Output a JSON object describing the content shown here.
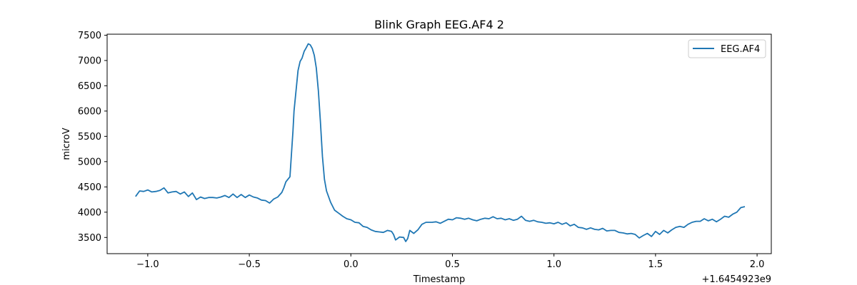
{
  "chart_data": {
    "type": "line",
    "title": "Blink Graph EEG.AF4 2",
    "xlabel": "Timestamp",
    "ylabel": "microV",
    "x_offset_label": "+1.6454923e9",
    "xlim": [
      -1.2,
      2.07
    ],
    "ylim": [
      3180,
      7520
    ],
    "xticks": [
      -1.0,
      -0.5,
      0.0,
      0.5,
      1.0,
      1.5,
      2.0
    ],
    "xtick_labels": [
      "−1.0",
      "−0.5",
      "0.0",
      "0.5",
      "1.0",
      "1.5",
      "2.0"
    ],
    "yticks": [
      3500,
      4000,
      4500,
      5000,
      5500,
      6000,
      6500,
      7000,
      7500
    ],
    "ytick_labels": [
      "3500",
      "4000",
      "4500",
      "5000",
      "5500",
      "6000",
      "6500",
      "7000",
      "7500"
    ],
    "grid": false,
    "legend_position": "top-right",
    "series": [
      {
        "name": "EEG.AF4",
        "color": "#1f77b4",
        "points": [
          [
            -1.06,
            4310
          ],
          [
            -1.04,
            4420
          ],
          [
            -1.02,
            4410
          ],
          [
            -1.0,
            4440
          ],
          [
            -0.98,
            4400
          ],
          [
            -0.96,
            4410
          ],
          [
            -0.94,
            4430
          ],
          [
            -0.92,
            4480
          ],
          [
            -0.9,
            4380
          ],
          [
            -0.88,
            4400
          ],
          [
            -0.86,
            4410
          ],
          [
            -0.84,
            4360
          ],
          [
            -0.82,
            4400
          ],
          [
            -0.8,
            4310
          ],
          [
            -0.78,
            4380
          ],
          [
            -0.76,
            4250
          ],
          [
            -0.74,
            4300
          ],
          [
            -0.72,
            4270
          ],
          [
            -0.7,
            4290
          ],
          [
            -0.68,
            4290
          ],
          [
            -0.66,
            4280
          ],
          [
            -0.64,
            4300
          ],
          [
            -0.62,
            4330
          ],
          [
            -0.6,
            4290
          ],
          [
            -0.58,
            4360
          ],
          [
            -0.56,
            4290
          ],
          [
            -0.54,
            4350
          ],
          [
            -0.52,
            4290
          ],
          [
            -0.5,
            4340
          ],
          [
            -0.48,
            4300
          ],
          [
            -0.46,
            4280
          ],
          [
            -0.44,
            4240
          ],
          [
            -0.42,
            4230
          ],
          [
            -0.4,
            4180
          ],
          [
            -0.38,
            4260
          ],
          [
            -0.36,
            4300
          ],
          [
            -0.34,
            4390
          ],
          [
            -0.33,
            4480
          ],
          [
            -0.32,
            4600
          ],
          [
            -0.31,
            4650
          ],
          [
            -0.3,
            4700
          ],
          [
            -0.295,
            5000
          ],
          [
            -0.29,
            5300
          ],
          [
            -0.285,
            5600
          ],
          [
            -0.28,
            6000
          ],
          [
            -0.27,
            6400
          ],
          [
            -0.26,
            6800
          ],
          [
            -0.25,
            6980
          ],
          [
            -0.24,
            7050
          ],
          [
            -0.23,
            7180
          ],
          [
            -0.22,
            7250
          ],
          [
            -0.21,
            7330
          ],
          [
            -0.2,
            7310
          ],
          [
            -0.19,
            7240
          ],
          [
            -0.18,
            7100
          ],
          [
            -0.17,
            6850
          ],
          [
            -0.16,
            6400
          ],
          [
            -0.15,
            5800
          ],
          [
            -0.14,
            5100
          ],
          [
            -0.13,
            4650
          ],
          [
            -0.12,
            4420
          ],
          [
            -0.1,
            4200
          ],
          [
            -0.08,
            4040
          ],
          [
            -0.06,
            3980
          ],
          [
            -0.04,
            3920
          ],
          [
            -0.02,
            3870
          ],
          [
            0.0,
            3850
          ],
          [
            0.02,
            3800
          ],
          [
            0.04,
            3790
          ],
          [
            0.06,
            3720
          ],
          [
            0.08,
            3700
          ],
          [
            0.1,
            3650
          ],
          [
            0.12,
            3620
          ],
          [
            0.14,
            3610
          ],
          [
            0.16,
            3600
          ],
          [
            0.18,
            3640
          ],
          [
            0.2,
            3620
          ],
          [
            0.21,
            3560
          ],
          [
            0.22,
            3450
          ],
          [
            0.24,
            3510
          ],
          [
            0.26,
            3500
          ],
          [
            0.27,
            3420
          ],
          [
            0.28,
            3480
          ],
          [
            0.29,
            3640
          ],
          [
            0.31,
            3580
          ],
          [
            0.33,
            3650
          ],
          [
            0.35,
            3760
          ],
          [
            0.37,
            3800
          ],
          [
            0.4,
            3800
          ],
          [
            0.42,
            3810
          ],
          [
            0.44,
            3780
          ],
          [
            0.46,
            3820
          ],
          [
            0.48,
            3860
          ],
          [
            0.5,
            3850
          ],
          [
            0.52,
            3890
          ],
          [
            0.54,
            3880
          ],
          [
            0.56,
            3860
          ],
          [
            0.58,
            3880
          ],
          [
            0.6,
            3850
          ],
          [
            0.62,
            3830
          ],
          [
            0.64,
            3860
          ],
          [
            0.66,
            3880
          ],
          [
            0.68,
            3870
          ],
          [
            0.7,
            3910
          ],
          [
            0.72,
            3870
          ],
          [
            0.74,
            3880
          ],
          [
            0.76,
            3850
          ],
          [
            0.78,
            3870
          ],
          [
            0.8,
            3840
          ],
          [
            0.82,
            3860
          ],
          [
            0.84,
            3920
          ],
          [
            0.86,
            3840
          ],
          [
            0.88,
            3820
          ],
          [
            0.9,
            3840
          ],
          [
            0.92,
            3810
          ],
          [
            0.94,
            3800
          ],
          [
            0.96,
            3780
          ],
          [
            0.98,
            3790
          ],
          [
            1.0,
            3770
          ],
          [
            1.02,
            3800
          ],
          [
            1.04,
            3760
          ],
          [
            1.06,
            3790
          ],
          [
            1.08,
            3730
          ],
          [
            1.1,
            3760
          ],
          [
            1.12,
            3700
          ],
          [
            1.14,
            3690
          ],
          [
            1.16,
            3660
          ],
          [
            1.18,
            3690
          ],
          [
            1.2,
            3660
          ],
          [
            1.22,
            3650
          ],
          [
            1.24,
            3680
          ],
          [
            1.26,
            3630
          ],
          [
            1.28,
            3640
          ],
          [
            1.3,
            3640
          ],
          [
            1.32,
            3600
          ],
          [
            1.34,
            3590
          ],
          [
            1.36,
            3570
          ],
          [
            1.38,
            3580
          ],
          [
            1.4,
            3560
          ],
          [
            1.42,
            3490
          ],
          [
            1.44,
            3540
          ],
          [
            1.46,
            3580
          ],
          [
            1.48,
            3520
          ],
          [
            1.5,
            3620
          ],
          [
            1.52,
            3560
          ],
          [
            1.54,
            3640
          ],
          [
            1.56,
            3590
          ],
          [
            1.58,
            3650
          ],
          [
            1.6,
            3700
          ],
          [
            1.62,
            3720
          ],
          [
            1.64,
            3700
          ],
          [
            1.66,
            3760
          ],
          [
            1.68,
            3800
          ],
          [
            1.7,
            3820
          ],
          [
            1.72,
            3820
          ],
          [
            1.74,
            3870
          ],
          [
            1.76,
            3830
          ],
          [
            1.78,
            3860
          ],
          [
            1.8,
            3810
          ],
          [
            1.82,
            3860
          ],
          [
            1.84,
            3920
          ],
          [
            1.86,
            3900
          ],
          [
            1.88,
            3960
          ],
          [
            1.9,
            4000
          ],
          [
            1.92,
            4090
          ],
          [
            1.94,
            4110
          ]
        ]
      }
    ]
  }
}
